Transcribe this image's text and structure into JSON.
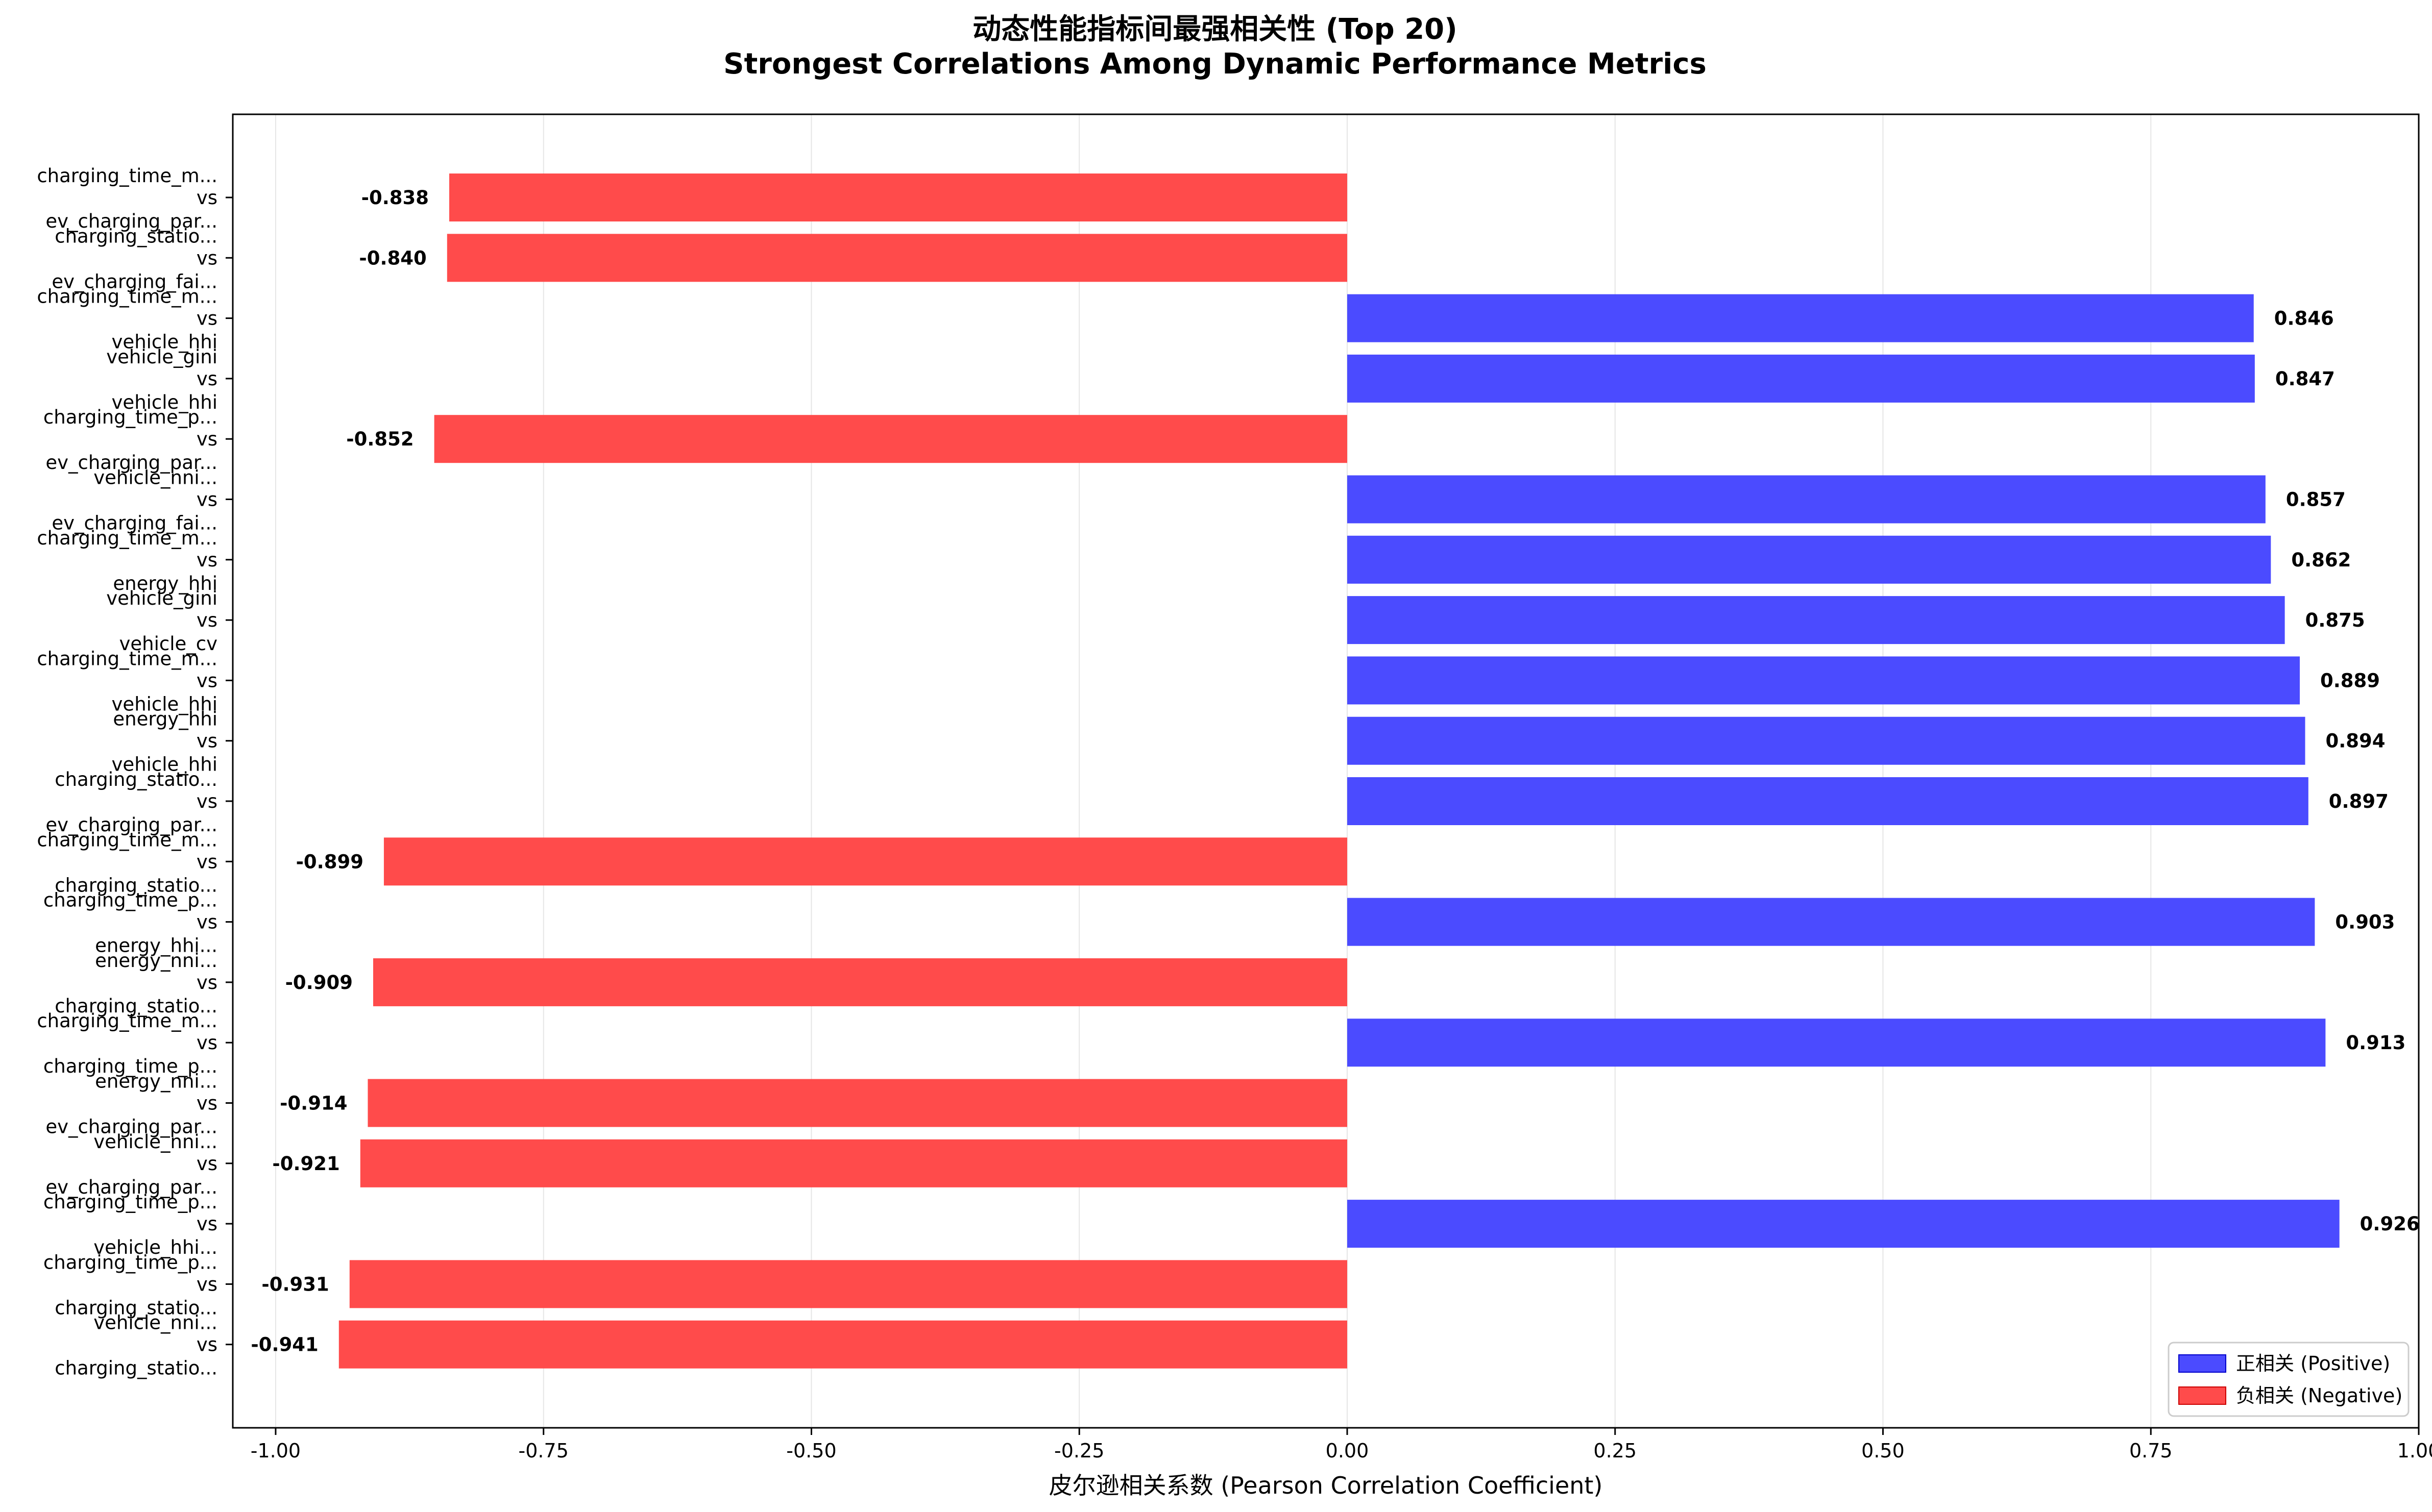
{
  "chart_data": {
    "type": "bar",
    "orientation": "horizontal",
    "title": "动态性能指标间最强相关性 (Top 20)",
    "subtitle": "Strongest Correlations Among Dynamic Performance Metrics",
    "xlabel": "皮尔逊相关系数 (Pearson Correlation Coefficient)",
    "ylabel": "",
    "xlim": [
      -1.04,
      1.0
    ],
    "xticks": [
      -1.0,
      -0.75,
      -0.5,
      -0.25,
      0.0,
      0.25,
      0.5,
      0.75,
      1.0
    ],
    "xtick_labels": [
      "-1.00",
      "-0.75",
      "-0.50",
      "-0.25",
      "0.00",
      "0.25",
      "0.50",
      "0.75",
      "1.00"
    ],
    "grid": true,
    "legend_position": "bottom-right",
    "legend": [
      {
        "label": "正相关 (Positive)",
        "color": "#4b4bff"
      },
      {
        "label": "负相关 (Negative)",
        "color": "#ff4b4b"
      }
    ],
    "colors": {
      "positive": "#4b4bff",
      "negative": "#ff4b4b"
    },
    "bars": [
      {
        "label_top": "charging_time_m...",
        "label_mid": "vs",
        "label_bottom": "ev_charging_par...",
        "value": -0.838
      },
      {
        "label_top": "charging_statio...",
        "label_mid": "vs",
        "label_bottom": "ev_charging_fai...",
        "value": -0.84
      },
      {
        "label_top": "charging_time_m...",
        "label_mid": "vs",
        "label_bottom": "vehicle_hhi",
        "value": 0.846
      },
      {
        "label_top": "vehicle_gini",
        "label_mid": "vs",
        "label_bottom": "vehicle_hhi",
        "value": 0.847
      },
      {
        "label_top": "charging_time_p...",
        "label_mid": "vs",
        "label_bottom": "ev_charging_par...",
        "value": -0.852
      },
      {
        "label_top": "vehicle_nni...",
        "label_mid": "vs",
        "label_bottom": "ev_charging_fai...",
        "value": 0.857
      },
      {
        "label_top": "charging_time_m...",
        "label_mid": "vs",
        "label_bottom": "energy_hhi",
        "value": 0.862
      },
      {
        "label_top": "vehicle_gini",
        "label_mid": "vs",
        "label_bottom": "vehicle_cv",
        "value": 0.875
      },
      {
        "label_top": "charging_time_m...",
        "label_mid": "vs",
        "label_bottom": "vehicle_hhi",
        "value": 0.889
      },
      {
        "label_top": "energy_hhi",
        "label_mid": "vs",
        "label_bottom": "vehicle_hhi",
        "value": 0.894
      },
      {
        "label_top": "charging_statio...",
        "label_mid": "vs",
        "label_bottom": "ev_charging_par...",
        "value": 0.897
      },
      {
        "label_top": "charging_time_m...",
        "label_mid": "vs",
        "label_bottom": "charging_statio...",
        "value": -0.899
      },
      {
        "label_top": "charging_time_p...",
        "label_mid": "vs",
        "label_bottom": "energy_hhi...",
        "value": 0.903
      },
      {
        "label_top": "energy_nni...",
        "label_mid": "vs",
        "label_bottom": "charging_statio...",
        "value": -0.909
      },
      {
        "label_top": "charging_time_m...",
        "label_mid": "vs",
        "label_bottom": "charging_time_p...",
        "value": 0.913
      },
      {
        "label_top": "energy_nni...",
        "label_mid": "vs",
        "label_bottom": "ev_charging_par...",
        "value": -0.914
      },
      {
        "label_top": "vehicle_nni...",
        "label_mid": "vs",
        "label_bottom": "ev_charging_par...",
        "value": -0.921
      },
      {
        "label_top": "charging_time_p...",
        "label_mid": "vs",
        "label_bottom": "vehicle_hhi...",
        "value": 0.926
      },
      {
        "label_top": "charging_time_p...",
        "label_mid": "vs",
        "label_bottom": "charging_statio...",
        "value": -0.931
      },
      {
        "label_top": "vehicle_nni...",
        "label_mid": "vs",
        "label_bottom": "charging_statio...",
        "value": -0.941
      }
    ]
  }
}
